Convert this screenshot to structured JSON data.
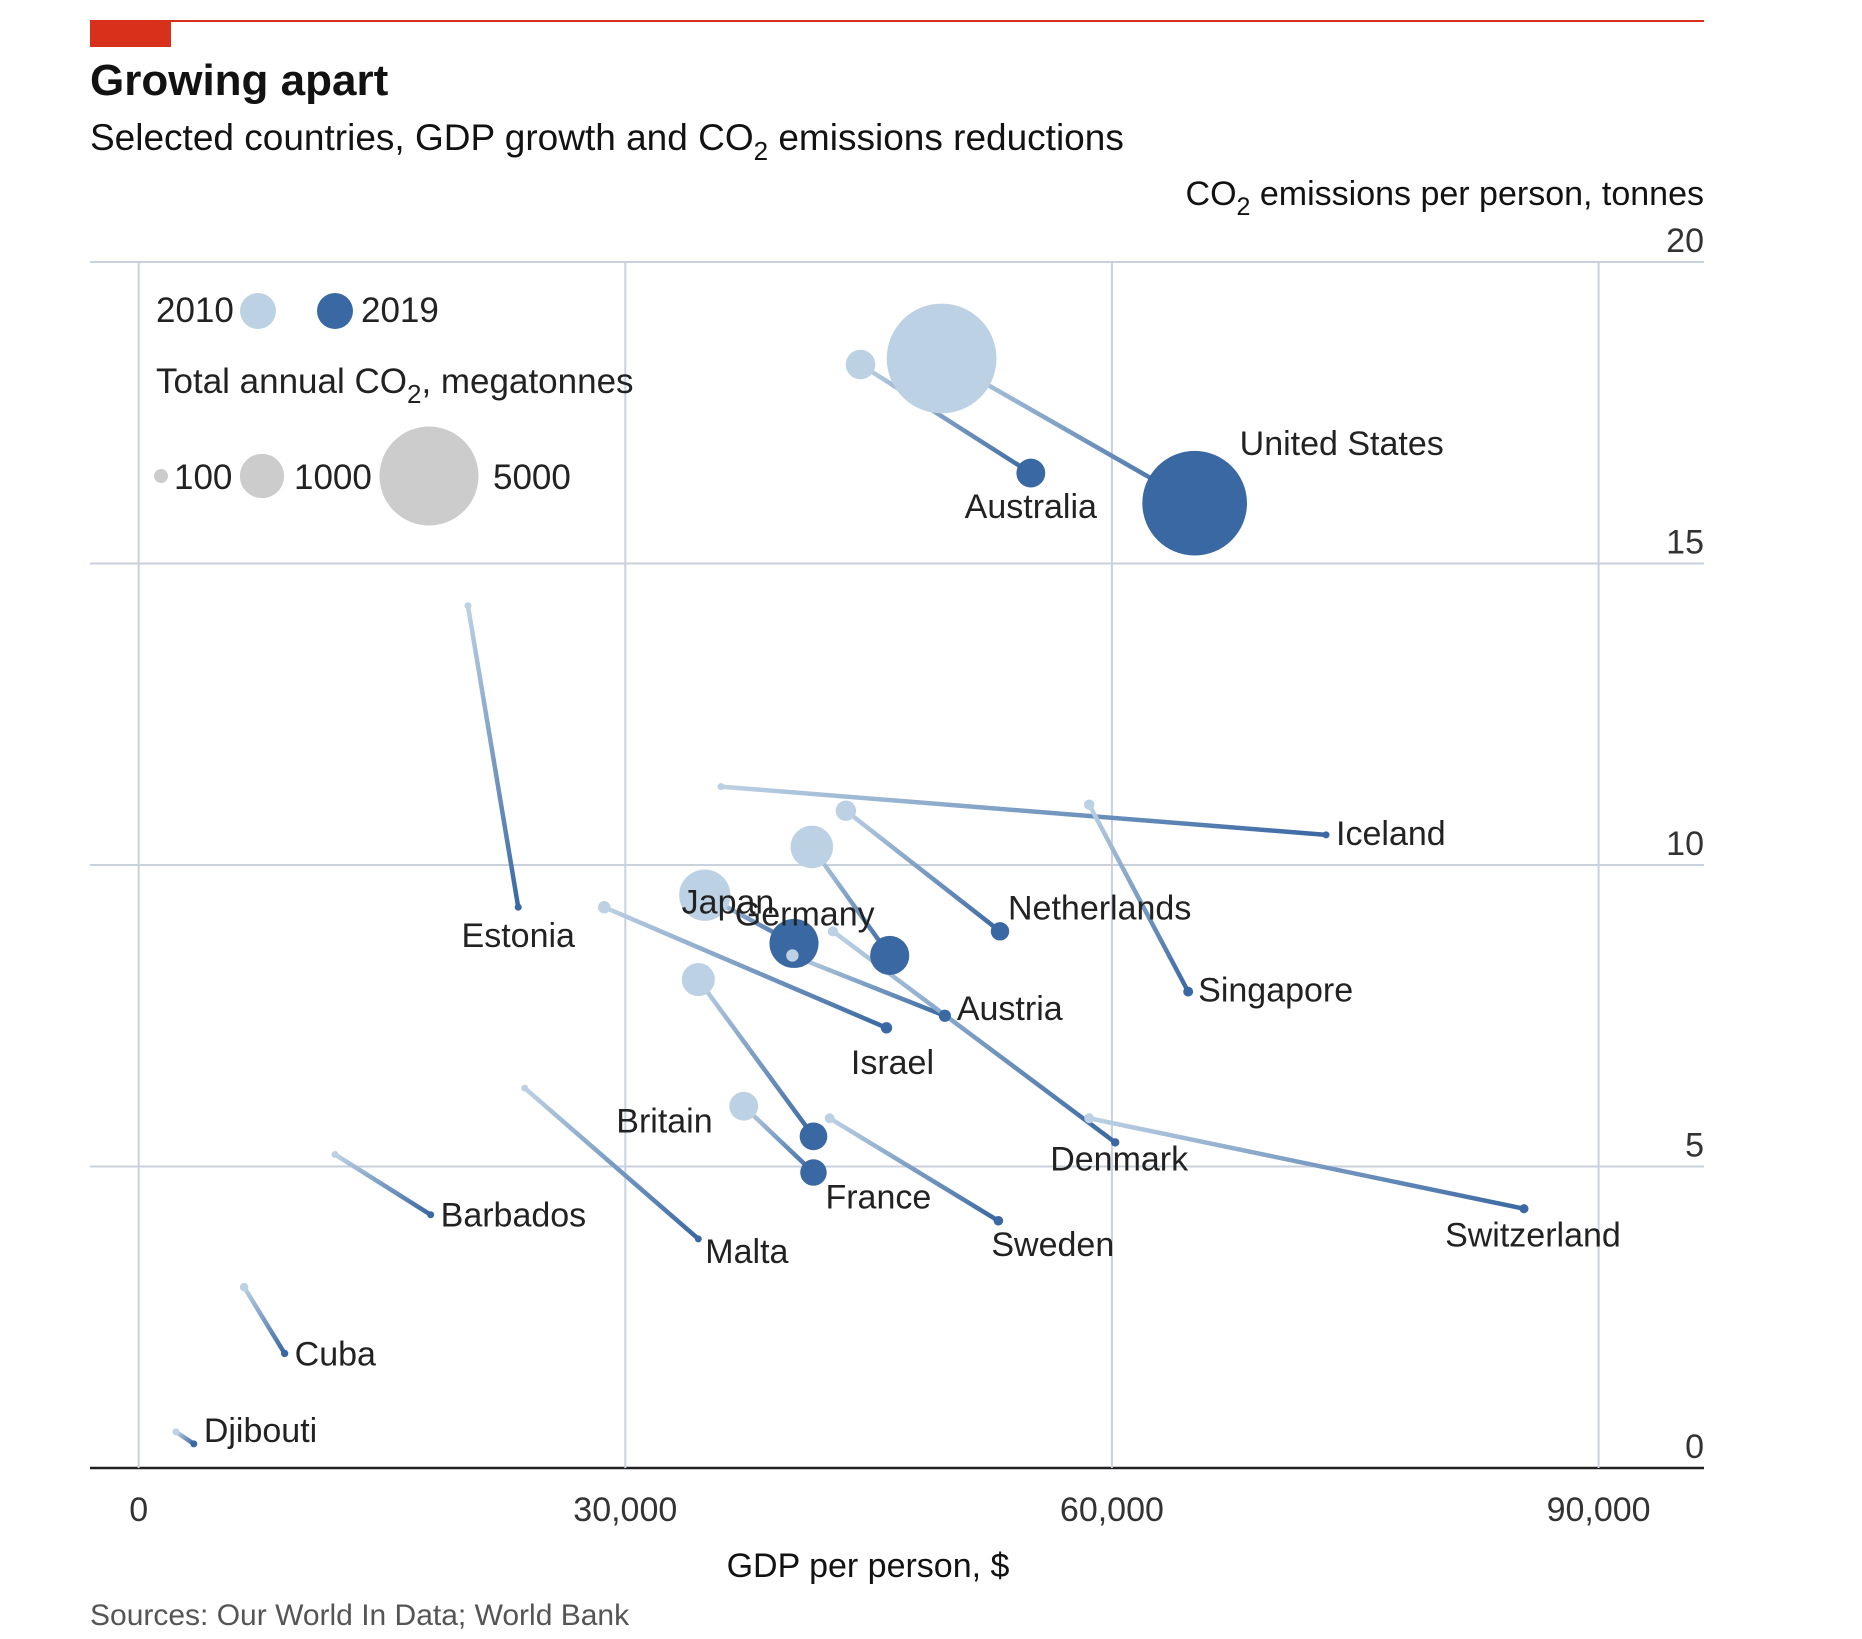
{
  "title": "Growing apart",
  "subtitle": {
    "prefix": "Selected countries, GDP growth and CO",
    "sub": "2",
    "suffix": " emissions reductions"
  },
  "source": "Sources: Our World In Data; World Bank",
  "colors": {
    "accent_red": "#d8311b",
    "light_blue": "#bcd1e3",
    "dark_blue": "#3a68a3",
    "grid": "#c9d2dc",
    "legend_grey": "#cccccc"
  },
  "legend": {
    "year_start": "2010",
    "year_end": "2019",
    "size_title_prefix": "Total annual CO",
    "size_title_sub": "2",
    "size_title_suffix": ", megatonnes",
    "sizes": [
      {
        "label": "100",
        "value": 100
      },
      {
        "label": "1000",
        "value": 1000
      },
      {
        "label": "5000",
        "value": 5000
      }
    ]
  },
  "chart_data": {
    "type": "scatter",
    "xlabel": "GDP per person, $",
    "ylabel": {
      "prefix": "CO",
      "sub": "2",
      "suffix": " emissions per person, tonnes"
    },
    "xlim": [
      -3000,
      96500
    ],
    "ylim": [
      0,
      20
    ],
    "x_ticks": [
      {
        "value": 0,
        "label": "0"
      },
      {
        "value": 30000,
        "label": "30,000"
      },
      {
        "value": 60000,
        "label": "60,000"
      },
      {
        "value": 90000,
        "label": "90,000"
      }
    ],
    "y_ticks": [
      {
        "value": 0,
        "label": "0"
      },
      {
        "value": 5,
        "label": "5"
      },
      {
        "value": 10,
        "label": "10"
      },
      {
        "value": 15,
        "label": "15"
      },
      {
        "value": 20,
        "label": "20"
      }
    ],
    "grid": true,
    "series": [
      {
        "name": "United States",
        "x0": 49500,
        "y0": 18.4,
        "x1": 65100,
        "y1": 16.0,
        "size0": 5500,
        "size1": 5000
      },
      {
        "name": "Australia",
        "x0": 44500,
        "y0": 18.3,
        "x1": 55000,
        "y1": 16.5,
        "size0": 400,
        "size1": 380
      },
      {
        "name": "Estonia",
        "x0": 20300,
        "y0": 14.3,
        "x1": 23400,
        "y1": 9.3,
        "size0": 18,
        "size1": 12
      },
      {
        "name": "Iceland",
        "x0": 35900,
        "y0": 11.3,
        "x1": 73200,
        "y1": 10.5,
        "size0": 3,
        "size1": 4
      },
      {
        "name": "Singapore",
        "x0": 58600,
        "y0": 11.0,
        "x1": 64700,
        "y1": 7.9,
        "size0": 50,
        "size1": 45
      },
      {
        "name": "Netherlands",
        "x0": 43600,
        "y0": 10.9,
        "x1": 53100,
        "y1": 8.9,
        "size0": 190,
        "size1": 155
      },
      {
        "name": "Germany",
        "x0": 41500,
        "y0": 10.3,
        "x1": 46300,
        "y1": 8.5,
        "size0": 830,
        "size1": 700
      },
      {
        "name": "Japan",
        "x0": 34900,
        "y0": 9.5,
        "x1": 40400,
        "y1": 8.7,
        "size0": 1200,
        "size1": 1100
      },
      {
        "name": "Austria",
        "x0": 40300,
        "y0": 8.5,
        "x1": 49700,
        "y1": 7.5,
        "size0": 70,
        "size1": 68
      },
      {
        "name": "Israel",
        "x0": 28700,
        "y0": 9.3,
        "x1": 46100,
        "y1": 7.3,
        "size0": 70,
        "size1": 60
      },
      {
        "name": "Denmark",
        "x0": 42800,
        "y0": 8.9,
        "x1": 60200,
        "y1": 5.4,
        "size0": 48,
        "size1": 32
      },
      {
        "name": "Britain",
        "x0": 34500,
        "y0": 8.1,
        "x1": 41600,
        "y1": 5.5,
        "size0": 500,
        "size1": 350
      },
      {
        "name": "France",
        "x0": 37300,
        "y0": 6.0,
        "x1": 41600,
        "y1": 4.9,
        "size0": 380,
        "size1": 320
      },
      {
        "name": "Sweden",
        "x0": 42600,
        "y0": 5.8,
        "x1": 53000,
        "y1": 4.1,
        "size0": 45,
        "size1": 42
      },
      {
        "name": "Switzerland",
        "x0": 58600,
        "y0": 5.8,
        "x1": 85400,
        "y1": 4.3,
        "size0": 45,
        "size1": 38
      },
      {
        "name": "Barbados",
        "x0": 12100,
        "y0": 5.2,
        "x1": 18000,
        "y1": 4.2,
        "size0": 2,
        "size1": 2
      },
      {
        "name": "Malta",
        "x0": 23800,
        "y0": 6.3,
        "x1": 34500,
        "y1": 3.8,
        "size0": 3,
        "size1": 2
      },
      {
        "name": "Cuba",
        "x0": 6500,
        "y0": 3.0,
        "x1": 9000,
        "y1": 1.9,
        "size0": 33,
        "size1": 25
      },
      {
        "name": "Djibouti",
        "x0": 2300,
        "y0": 0.6,
        "x1": 3400,
        "y1": 0.4,
        "size0": 1,
        "size1": 1
      }
    ]
  }
}
